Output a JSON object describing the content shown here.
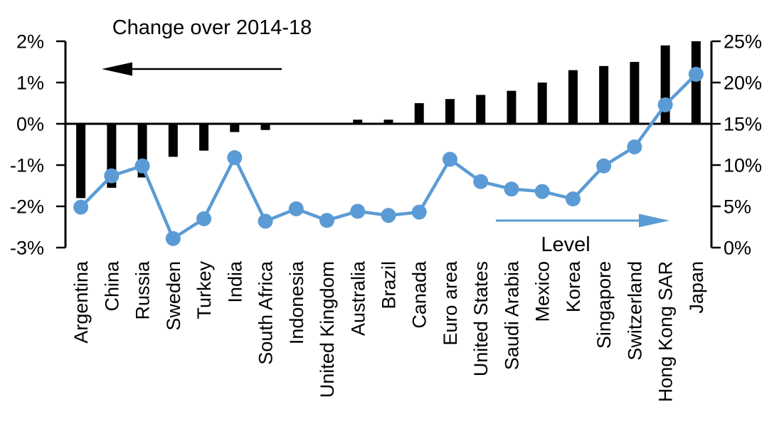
{
  "chart_data": {
    "type": "bar",
    "subtype": "bar-line-combo",
    "title": "",
    "grid": false,
    "legend_position": "none",
    "background": "#FFFFFF",
    "categories": [
      "Argentina",
      "China",
      "Russia",
      "Sweden",
      "Turkey",
      "India",
      "South Africa",
      "Indonesia",
      "United Kingdom",
      "Australia",
      "Brazil",
      "Canada",
      "Euro area",
      "United States",
      "Saudi Arabia",
      "Mexico",
      "Korea",
      "Singapore",
      "Switzerland",
      "Hong Kong SAR",
      "Japan"
    ],
    "series": [
      {
        "name": "Change over 2014-18",
        "type": "bar",
        "axis": "left",
        "color": "#000000",
        "values": [
          -1.8,
          -1.55,
          -1.3,
          -0.8,
          -0.65,
          -0.2,
          -0.15,
          0,
          0,
          0.1,
          0.1,
          0.5,
          0.6,
          0.7,
          0.8,
          1.0,
          1.3,
          1.4,
          1.5,
          1.9,
          2.0
        ]
      },
      {
        "name": "Level",
        "type": "line",
        "axis": "right",
        "color": "#5B9BD5",
        "values": [
          4.9,
          8.7,
          9.9,
          1.1,
          3.5,
          10.9,
          3.2,
          4.7,
          3.3,
          4.4,
          3.9,
          4.3,
          10.7,
          8.0,
          7.1,
          6.8,
          5.9,
          9.9,
          12.2,
          17.3,
          21.0
        ]
      }
    ],
    "left_axis": {
      "min": -3,
      "max": 2,
      "tick_values": [
        2,
        1,
        0,
        -1,
        -2,
        -3
      ],
      "tick_labels": [
        "2%",
        "1%",
        "0%",
        "-1%",
        "-2%",
        "-3%"
      ]
    },
    "right_axis": {
      "min": 0,
      "max": 25,
      "tick_values": [
        25,
        20,
        15,
        10,
        5,
        0
      ],
      "tick_labels": [
        "25%",
        "20%",
        "15%",
        "10%",
        "5%",
        "0%"
      ]
    },
    "annotations": [
      {
        "label": "Change over 2014-18",
        "arrow_direction": "left",
        "color": "#000000"
      },
      {
        "label": "Level",
        "arrow_direction": "right",
        "color": "#5B9BD5"
      }
    ]
  }
}
